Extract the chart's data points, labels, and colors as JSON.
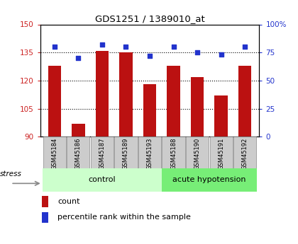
{
  "title": "GDS1251 / 1389010_at",
  "samples": [
    "GSM45184",
    "GSM45186",
    "GSM45187",
    "GSM45189",
    "GSM45193",
    "GSM45188",
    "GSM45190",
    "GSM45191",
    "GSM45192"
  ],
  "counts": [
    128,
    97,
    136,
    135,
    118,
    128,
    122,
    112,
    128
  ],
  "percentiles": [
    80,
    70,
    82,
    80,
    72,
    80,
    75,
    73,
    80
  ],
  "n_control": 5,
  "ylim_left": [
    90,
    150
  ],
  "yticks_left": [
    90,
    105,
    120,
    135,
    150
  ],
  "ylim_right": [
    0,
    100
  ],
  "yticks_right": [
    0,
    25,
    50,
    75,
    100
  ],
  "bar_color": "#bb1111",
  "dot_color": "#2233cc",
  "bg_color": "#ffffff",
  "left_tick_color": "#cc2222",
  "right_tick_color": "#2233cc",
  "control_color": "#ccffcc",
  "acute_color": "#77ee77",
  "label_box_color": "#cccccc",
  "legend_count_label": "count",
  "legend_pct_label": "percentile rank within the sample",
  "stress_label": "stress",
  "group_label_control": "control",
  "group_label_acute": "acute hypotension",
  "grid_yticks": [
    105,
    120,
    135
  ]
}
